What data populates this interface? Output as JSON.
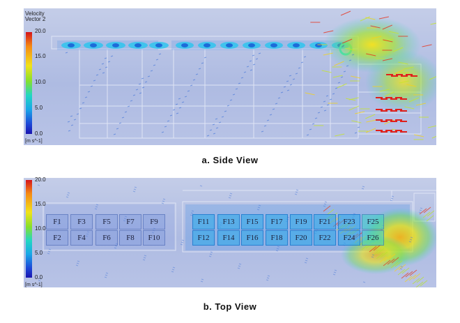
{
  "side_view": {
    "legend": {
      "title_line1": "Velocity",
      "title_line2": "Vector 2",
      "ticks": [
        "20.0",
        "15.0",
        "10.0",
        "5.0",
        "0.0"
      ],
      "unit": "[m s^-1]"
    },
    "caption": "a. Side View"
  },
  "top_view": {
    "legend": {
      "ticks": [
        "20.0",
        "15.0",
        "10.0",
        "5.0",
        "0.0"
      ],
      "unit": "[m s^-1]"
    },
    "caption": "b. Top View",
    "fans_left": [
      [
        "F1",
        "F3",
        "F5",
        "F7",
        "F9"
      ],
      [
        "F2",
        "F4",
        "F6",
        "F8",
        "F10"
      ]
    ],
    "fans_right": [
      [
        "F11",
        "F13",
        "F15",
        "F17",
        "F19",
        "F21",
        "F23",
        "F25"
      ],
      [
        "F12",
        "F14",
        "F16",
        "F18",
        "F20",
        "F22",
        "F24",
        "F26"
      ]
    ]
  },
  "colors": {
    "background": "#b8c3e6",
    "low_velocity": "#1a14b0",
    "high_velocity": "#d4141c"
  }
}
